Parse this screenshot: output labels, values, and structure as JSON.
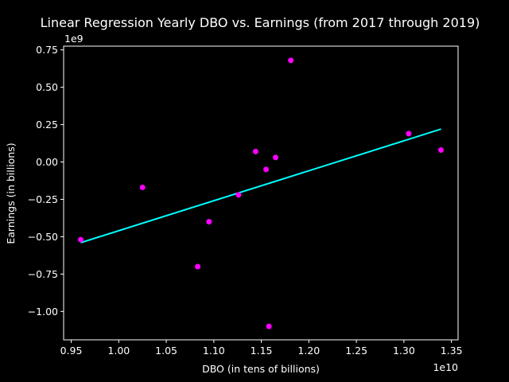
{
  "chart_data": {
    "type": "scatter",
    "title": "Linear Regression Yearly DBO vs. Earnings (from 2017 through 2019)",
    "xlabel": "DBO (in tens of billions)",
    "ylabel": "Earnings (in billions)",
    "x_offset_label": "1e10",
    "y_offset_label": "1e9",
    "xlim": [
      0.942,
      1.357
    ],
    "ylim": [
      -1.19,
      0.775
    ],
    "xticks": [
      "0.95",
      "1.00",
      "1.05",
      "1.10",
      "1.15",
      "1.20",
      "1.25",
      "1.30",
      "1.35"
    ],
    "yticks": [
      "−1.00",
      "−0.75",
      "−0.50",
      "−0.25",
      "0.00",
      "0.25",
      "0.50",
      "0.75"
    ],
    "grid": false,
    "legend": "none",
    "colors": {
      "background": "#000000",
      "points": "#ff00ff",
      "fit_line": "#00ffff",
      "axes": "#ffffff"
    },
    "points": [
      {
        "x": 0.96,
        "y": -0.52
      },
      {
        "x": 1.025,
        "y": -0.17
      },
      {
        "x": 1.083,
        "y": -0.7
      },
      {
        "x": 1.095,
        "y": -0.4
      },
      {
        "x": 1.126,
        "y": -0.22
      },
      {
        "x": 1.144,
        "y": 0.07
      },
      {
        "x": 1.155,
        "y": -0.05
      },
      {
        "x": 1.158,
        "y": -1.1
      },
      {
        "x": 1.165,
        "y": 0.03
      },
      {
        "x": 1.181,
        "y": 0.68
      },
      {
        "x": 1.305,
        "y": 0.19
      },
      {
        "x": 1.339,
        "y": 0.08
      }
    ],
    "fit_line": [
      {
        "x": 0.96,
        "y": -0.54
      },
      {
        "x": 1.339,
        "y": 0.22
      }
    ]
  }
}
